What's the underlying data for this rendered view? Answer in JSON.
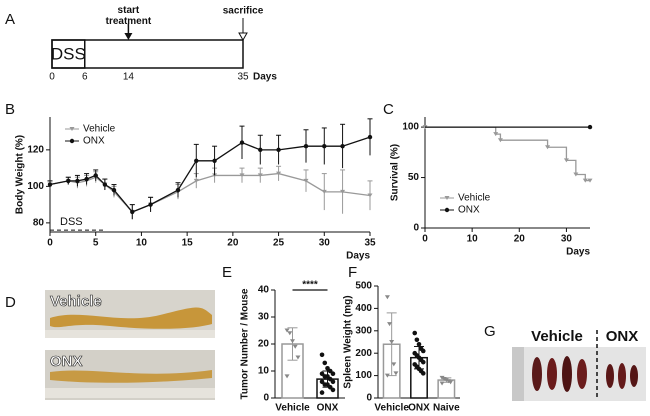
{
  "chart_data": [
    {
      "type": "timeline",
      "label": "A",
      "xlim": [
        0,
        35
      ],
      "xticks": [
        0,
        6,
        14,
        35
      ],
      "xlabel": "Days",
      "phases": [
        {
          "label": "DSS",
          "start": 0,
          "end": 6
        }
      ],
      "events": [
        {
          "label": "start treatment",
          "x": 14,
          "marker": "arrow"
        },
        {
          "label": "sacrifice",
          "x": 35,
          "marker": "open"
        }
      ]
    },
    {
      "type": "line",
      "label": "B",
      "xlabel": "Days",
      "ylabel": "Body Weight (%)",
      "xlim": [
        0,
        35
      ],
      "xticks": [
        0,
        5,
        10,
        15,
        20,
        25,
        30,
        35
      ],
      "ylim": [
        75,
        138
      ],
      "yticks": [
        80,
        100,
        120
      ],
      "legend": "top-left",
      "annotation": {
        "text": "DSS",
        "start": 0,
        "end": 6,
        "y": 76
      },
      "x": [
        0,
        2,
        3,
        4,
        5,
        6,
        7,
        9,
        11,
        14,
        16,
        18,
        21,
        23,
        25,
        28,
        30,
        32,
        35
      ],
      "series": [
        {
          "name": "Vehicle",
          "color": "#999999",
          "values": [
            101,
            103,
            102,
            103,
            105,
            101,
            97,
            86,
            90,
            97,
            103,
            106,
            106,
            106,
            107,
            103,
            97,
            97,
            95
          ],
          "errors": [
            2,
            2,
            3,
            3,
            3,
            3,
            3,
            4,
            4,
            4,
            4,
            4,
            4,
            4,
            4,
            6,
            10,
            12,
            8
          ]
        },
        {
          "name": "ONX",
          "color": "#111111",
          "values": [
            101,
            103,
            103,
            104,
            106,
            101,
            98,
            86,
            90,
            98,
            114,
            114,
            124,
            120,
            120,
            122,
            122,
            122,
            127
          ],
          "errors": [
            2,
            2,
            3,
            3,
            3,
            3,
            3,
            4,
            4,
            4,
            9,
            8,
            9,
            8,
            8,
            9,
            10,
            12,
            10
          ]
        }
      ]
    },
    {
      "type": "line",
      "label": "C",
      "step": true,
      "xlabel": "Days",
      "ylabel": "Survival (%)",
      "xlim": [
        0,
        35
      ],
      "xticks": [
        0,
        10,
        20,
        30
      ],
      "ylim": [
        0,
        110
      ],
      "yticks": [
        0,
        50,
        100
      ],
      "legend": "bottom-left",
      "series": [
        {
          "name": "Vehicle",
          "color": "#999999",
          "x": [
            0,
            15,
            16,
            26,
            30,
            32,
            34,
            35
          ],
          "values": [
            100,
            93,
            87,
            80,
            67,
            53,
            47,
            47
          ]
        },
        {
          "name": "ONX",
          "color": "#111111",
          "x": [
            0,
            35
          ],
          "values": [
            100,
            100
          ]
        }
      ]
    },
    {
      "type": "bar",
      "label": "E",
      "ylabel": "Tumor Number / Mouse",
      "ylim": [
        0,
        40
      ],
      "yticks": [
        0,
        10,
        20,
        30,
        40
      ],
      "categories": [
        "Vehicle",
        "ONX"
      ],
      "values": [
        20,
        7
      ],
      "errors": [
        6,
        3
      ],
      "colors": [
        "#999999",
        "#111111"
      ],
      "significance": "****",
      "points": [
        [
          25,
          24,
          21,
          19,
          15,
          8
        ],
        [
          16,
          13,
          11,
          10,
          9,
          9,
          8,
          8,
          7,
          6,
          6,
          5,
          5,
          4,
          3,
          2
        ]
      ]
    },
    {
      "type": "bar",
      "label": "F",
      "ylabel": "Spleen Weight (mg)",
      "ylim": [
        0,
        500
      ],
      "yticks": [
        0,
        100,
        200,
        300,
        400,
        500
      ],
      "categories": [
        "Vehicle",
        "ONX",
        "Naive"
      ],
      "values": [
        240,
        180,
        80
      ],
      "errors": [
        140,
        50,
        10
      ],
      "colors": [
        "#999999",
        "#111111",
        "#999999"
      ],
      "points": [
        [
          450,
          330,
          250,
          150,
          110,
          100
        ],
        [
          290,
          260,
          240,
          220,
          210,
          200,
          190,
          180,
          170,
          160,
          150,
          140,
          130,
          120,
          110
        ],
        [
          90,
          85,
          80,
          75,
          70,
          65
        ]
      ]
    }
  ],
  "photos": [
    {
      "label": "D",
      "texts": [
        "Vehicle",
        "ONX"
      ]
    },
    {
      "label": "G",
      "texts": [
        "Vehicle",
        "ONX"
      ]
    }
  ]
}
